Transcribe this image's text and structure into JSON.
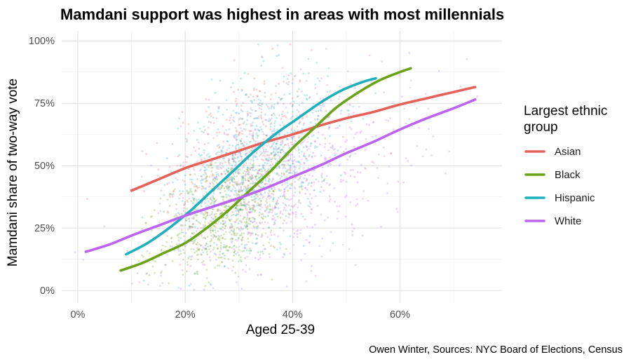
{
  "chart_data": {
    "type": "scatter",
    "title": "Mamdani support was highest in areas with most millennials",
    "xlabel": "Aged 25-39",
    "ylabel": "Mamdani share of two-way vote",
    "caption": "Owen Winter, Sources: NYC Board of Elections, Census",
    "xlim": [
      -0.03,
      0.79
    ],
    "ylim": [
      -0.05,
      1.04
    ],
    "x_ticks": [
      0,
      0.2,
      0.4,
      0.6
    ],
    "x_tick_labels": [
      "0%",
      "20%",
      "40%",
      "60%"
    ],
    "y_ticks": [
      0,
      0.25,
      0.5,
      0.75,
      1.0
    ],
    "y_tick_labels": [
      "0%",
      "25%",
      "50%",
      "75%",
      "100%"
    ],
    "grid": true,
    "legend": {
      "title": "Largest ethnic group",
      "title_lines": [
        "Largest ethnic",
        "group"
      ],
      "placement": "right"
    },
    "series": [
      {
        "name": "Asian",
        "color": "#e6615a",
        "trend": [
          [
            0.1,
            0.4
          ],
          [
            0.15,
            0.445
          ],
          [
            0.2,
            0.49
          ],
          [
            0.25,
            0.525
          ],
          [
            0.3,
            0.56
          ],
          [
            0.35,
            0.595
          ],
          [
            0.4,
            0.625
          ],
          [
            0.45,
            0.66
          ],
          [
            0.5,
            0.69
          ],
          [
            0.55,
            0.715
          ],
          [
            0.6,
            0.745
          ],
          [
            0.65,
            0.77
          ],
          [
            0.7,
            0.795
          ],
          [
            0.74,
            0.815
          ]
        ],
        "cloud": {
          "cx": 0.3,
          "cy": 0.55,
          "sx": 0.07,
          "sy": 0.15,
          "n": 420
        }
      },
      {
        "name": "Black",
        "color": "#6aa317",
        "trend": [
          [
            0.08,
            0.08
          ],
          [
            0.12,
            0.11
          ],
          [
            0.16,
            0.15
          ],
          [
            0.2,
            0.19
          ],
          [
            0.24,
            0.25
          ],
          [
            0.28,
            0.32
          ],
          [
            0.32,
            0.4
          ],
          [
            0.36,
            0.48
          ],
          [
            0.4,
            0.57
          ],
          [
            0.44,
            0.65
          ],
          [
            0.48,
            0.73
          ],
          [
            0.52,
            0.79
          ],
          [
            0.56,
            0.84
          ],
          [
            0.6,
            0.875
          ],
          [
            0.62,
            0.89
          ]
        ],
        "cloud": {
          "cx": 0.28,
          "cy": 0.3,
          "sx": 0.06,
          "sy": 0.11,
          "n": 700
        }
      },
      {
        "name": "Hispanic",
        "color": "#1fb0bd",
        "trend": [
          [
            0.09,
            0.145
          ],
          [
            0.13,
            0.19
          ],
          [
            0.17,
            0.25
          ],
          [
            0.21,
            0.32
          ],
          [
            0.25,
            0.4
          ],
          [
            0.29,
            0.48
          ],
          [
            0.33,
            0.56
          ],
          [
            0.37,
            0.63
          ],
          [
            0.41,
            0.69
          ],
          [
            0.45,
            0.75
          ],
          [
            0.49,
            0.8
          ],
          [
            0.53,
            0.835
          ],
          [
            0.555,
            0.85
          ]
        ],
        "cloud": {
          "cx": 0.33,
          "cy": 0.52,
          "sx": 0.07,
          "sy": 0.16,
          "n": 800
        }
      },
      {
        "name": "White",
        "color": "#bb63f2",
        "trend": [
          [
            0.015,
            0.155
          ],
          [
            0.06,
            0.185
          ],
          [
            0.1,
            0.22
          ],
          [
            0.15,
            0.26
          ],
          [
            0.2,
            0.3
          ],
          [
            0.25,
            0.335
          ],
          [
            0.3,
            0.37
          ],
          [
            0.35,
            0.41
          ],
          [
            0.4,
            0.455
          ],
          [
            0.45,
            0.5
          ],
          [
            0.5,
            0.55
          ],
          [
            0.55,
            0.595
          ],
          [
            0.6,
            0.645
          ],
          [
            0.65,
            0.69
          ],
          [
            0.7,
            0.73
          ],
          [
            0.74,
            0.765
          ]
        ],
        "cloud": {
          "cx": 0.38,
          "cy": 0.42,
          "sx": 0.12,
          "sy": 0.17,
          "n": 760
        }
      }
    ]
  }
}
